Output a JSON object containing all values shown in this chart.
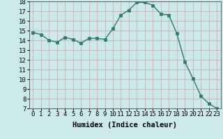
{
  "x": [
    0,
    1,
    2,
    3,
    4,
    5,
    6,
    7,
    8,
    9,
    10,
    11,
    12,
    13,
    14,
    15,
    16,
    17,
    18,
    19,
    20,
    21,
    22,
    23
  ],
  "y": [
    14.8,
    14.6,
    14.0,
    13.8,
    14.3,
    14.1,
    13.7,
    14.2,
    14.2,
    14.1,
    15.2,
    16.6,
    17.1,
    17.9,
    17.9,
    17.6,
    16.7,
    16.6,
    14.7,
    11.8,
    10.1,
    8.3,
    7.5,
    7.0
  ],
  "line_color": "#2d7a6e",
  "marker_color": "#2d7a6e",
  "bg_color": "#cce9e9",
  "grid_color": "#d4a0a0",
  "axis_color": "#606060",
  "xlabel": "Humidex (Indice chaleur)",
  "ylim": [
    7,
    18
  ],
  "xlim": [
    -0.5,
    23.5
  ],
  "yticks": [
    7,
    8,
    9,
    10,
    11,
    12,
    13,
    14,
    15,
    16,
    17,
    18
  ],
  "xticks": [
    0,
    1,
    2,
    3,
    4,
    5,
    6,
    7,
    8,
    9,
    10,
    11,
    12,
    13,
    14,
    15,
    16,
    17,
    18,
    19,
    20,
    21,
    22,
    23
  ],
  "xlabel_fontsize": 7.5,
  "tick_fontsize": 6.5,
  "marker_size": 2.5,
  "line_width": 1.0
}
